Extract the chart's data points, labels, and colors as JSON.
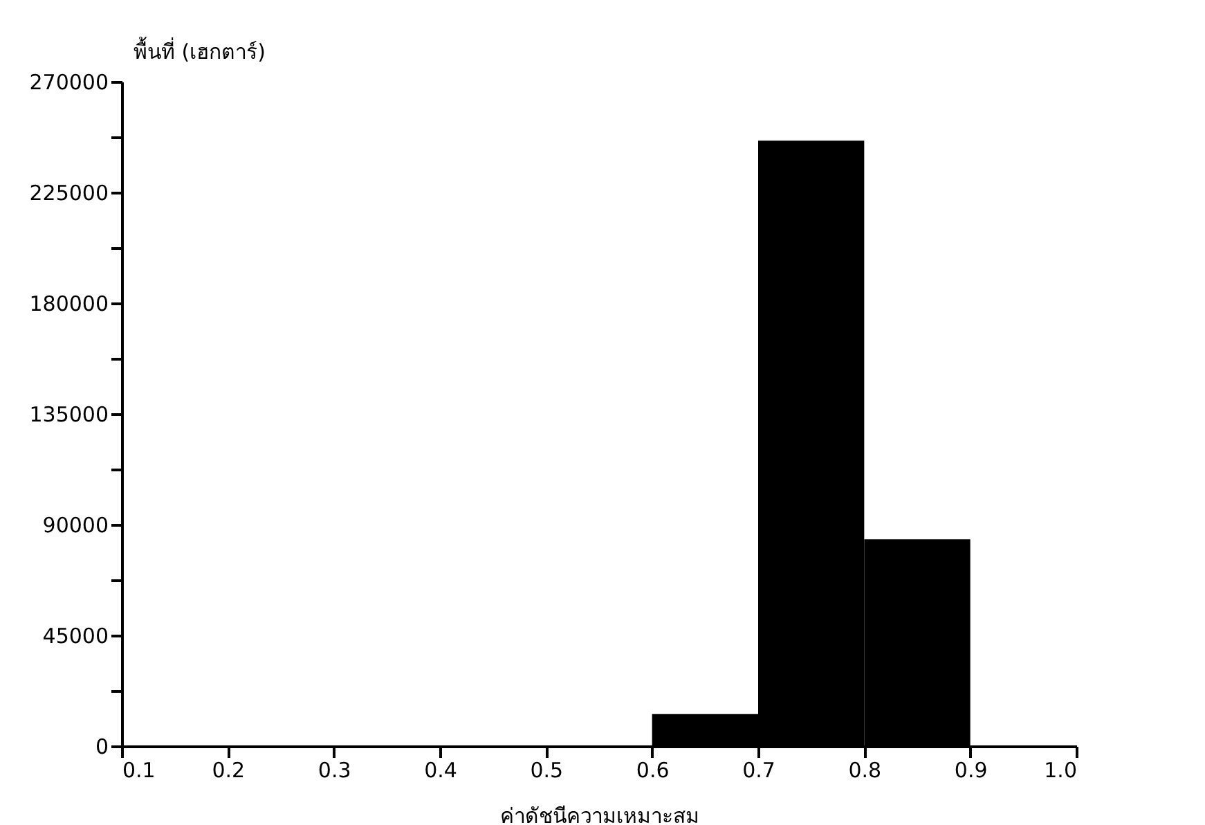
{
  "chart_data": {
    "type": "histogram",
    "xlabel": "ค่าดัชนีความเหมาะสม",
    "ylabel": "พื้นที่ (เฮกตาร์)",
    "bins": [
      0.1,
      0.2,
      0.3,
      0.4,
      0.5,
      0.6,
      0.7,
      0.8,
      0.9,
      1.0
    ],
    "values": [
      0,
      0,
      0,
      0,
      0,
      13000,
      246000,
      84000,
      0
    ],
    "color": "#000000",
    "xlim": [
      0.1,
      1.0
    ],
    "xticks": [
      0.1,
      0.2,
      0.3,
      0.4,
      0.5,
      0.6,
      0.7,
      0.8,
      0.9,
      {
        "value": 1.0,
        "label": "1.0"
      }
    ],
    "ylim": [
      0,
      270000
    ],
    "yticks": [
      0,
      {
        "value": 22500,
        "label": null
      },
      45000,
      {
        "value": 67500,
        "label": null
      },
      90000,
      {
        "value": 112500,
        "label": null
      },
      135000,
      {
        "value": 157500,
        "label": null
      },
      180000,
      {
        "value": 202500,
        "label": null
      },
      225000,
      {
        "value": 247500,
        "label": null
      },
      270000
    ],
    "grid": false
  }
}
